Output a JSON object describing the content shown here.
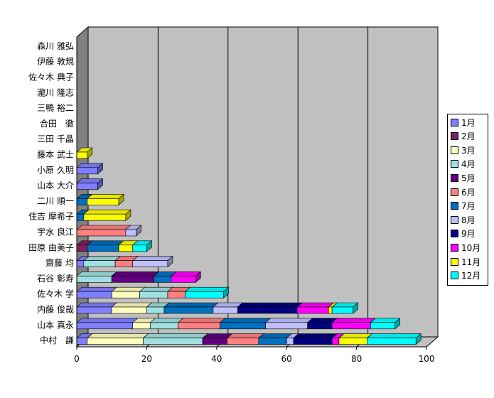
{
  "chart_data": {
    "type": "bar",
    "orientation": "horizontal",
    "stacked": true,
    "three_d": true,
    "categories": [
      "森川 雅弘",
      "伊藤 敦規",
      "佐々木 典子",
      "瀧川 隆志",
      "三鴨 裕二",
      "合田　徹",
      "三田 千晶",
      "藤本 武士",
      "小原 久明",
      "山本 大介",
      "二川 順一",
      "住吉 摩希子",
      "宇水 良江",
      "田原 由美子",
      "齋藤 均",
      "石谷 彰寿",
      "佐々木 学",
      "内藤 俊哉",
      "山本 真永",
      "中村　謙"
    ],
    "series": [
      {
        "name": "1月",
        "color": "#8080ff",
        "values": [
          0,
          0,
          0,
          0,
          0,
          0,
          0,
          0,
          6,
          6,
          0,
          0,
          0,
          0,
          2,
          0,
          10,
          10,
          16,
          3
        ]
      },
      {
        "name": "2月",
        "color": "#802060",
        "values": [
          0,
          0,
          0,
          0,
          0,
          0,
          0,
          0,
          0,
          0,
          0,
          0,
          0,
          3,
          0,
          0,
          0,
          0,
          0,
          0
        ]
      },
      {
        "name": "3月",
        "color": "#ffffc0",
        "values": [
          0,
          0,
          0,
          0,
          0,
          0,
          0,
          0,
          0,
          0,
          0,
          0,
          0,
          0,
          0,
          0,
          8,
          10,
          5,
          16
        ]
      },
      {
        "name": "4月",
        "color": "#a0e0e0",
        "values": [
          0,
          0,
          0,
          0,
          0,
          0,
          0,
          0,
          0,
          0,
          0,
          0,
          0,
          0,
          9,
          10,
          8,
          5,
          8,
          17
        ]
      },
      {
        "name": "5月",
        "color": "#600080",
        "values": [
          0,
          0,
          0,
          0,
          0,
          0,
          0,
          0,
          0,
          0,
          0,
          0,
          0,
          0,
          0,
          12,
          0,
          0,
          0,
          7
        ]
      },
      {
        "name": "6月",
        "color": "#ff8080",
        "values": [
          0,
          0,
          0,
          0,
          0,
          0,
          0,
          0,
          0,
          0,
          0,
          0,
          14,
          0,
          5,
          0,
          5,
          0,
          12,
          9
        ]
      },
      {
        "name": "7月",
        "color": "#0070c0",
        "values": [
          0,
          0,
          0,
          0,
          0,
          0,
          0,
          0,
          0,
          0,
          3,
          2,
          0,
          9,
          0,
          5,
          0,
          14,
          13,
          8
        ]
      },
      {
        "name": "8月",
        "color": "#c0c0ff",
        "values": [
          0,
          0,
          0,
          0,
          0,
          0,
          0,
          0,
          0,
          0,
          0,
          0,
          3,
          0,
          10,
          0,
          0,
          7,
          12,
          2
        ]
      },
      {
        "name": "9月",
        "color": "#000080",
        "values": [
          0,
          0,
          0,
          0,
          0,
          0,
          0,
          0,
          0,
          0,
          0,
          0,
          0,
          0,
          0,
          0,
          0,
          17,
          7,
          11
        ]
      },
      {
        "name": "10月",
        "color": "#ff00ff",
        "values": [
          0,
          0,
          0,
          0,
          0,
          0,
          0,
          0,
          0,
          0,
          0,
          0,
          0,
          0,
          0,
          7,
          0,
          9,
          11,
          2
        ]
      },
      {
        "name": "11月",
        "color": "#ffff00",
        "values": [
          0,
          0,
          0,
          0,
          0,
          0,
          0,
          3,
          0,
          0,
          9,
          12,
          0,
          4,
          0,
          0,
          0,
          1,
          0,
          8
        ]
      },
      {
        "name": "12月",
        "color": "#00ffff",
        "values": [
          0,
          0,
          0,
          0,
          0,
          0,
          0,
          0,
          0,
          0,
          0,
          0,
          0,
          4,
          0,
          0,
          11,
          6,
          7,
          14
        ]
      }
    ],
    "xlim": [
      0,
      100
    ],
    "xticks": [
      "0",
      "20",
      "40",
      "60",
      "80",
      "100"
    ],
    "grid": "vertical",
    "legend_position": "right"
  }
}
